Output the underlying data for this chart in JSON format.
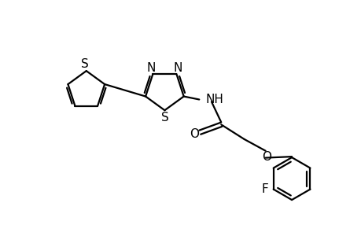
{
  "bg_color": "#ffffff",
  "line_color": "#000000",
  "line_width": 1.6,
  "font_size": 11,
  "fig_width": 4.6,
  "fig_height": 3.0,
  "dpi": 100,
  "xlim": [
    0,
    9
  ],
  "ylim": [
    0,
    6
  ]
}
